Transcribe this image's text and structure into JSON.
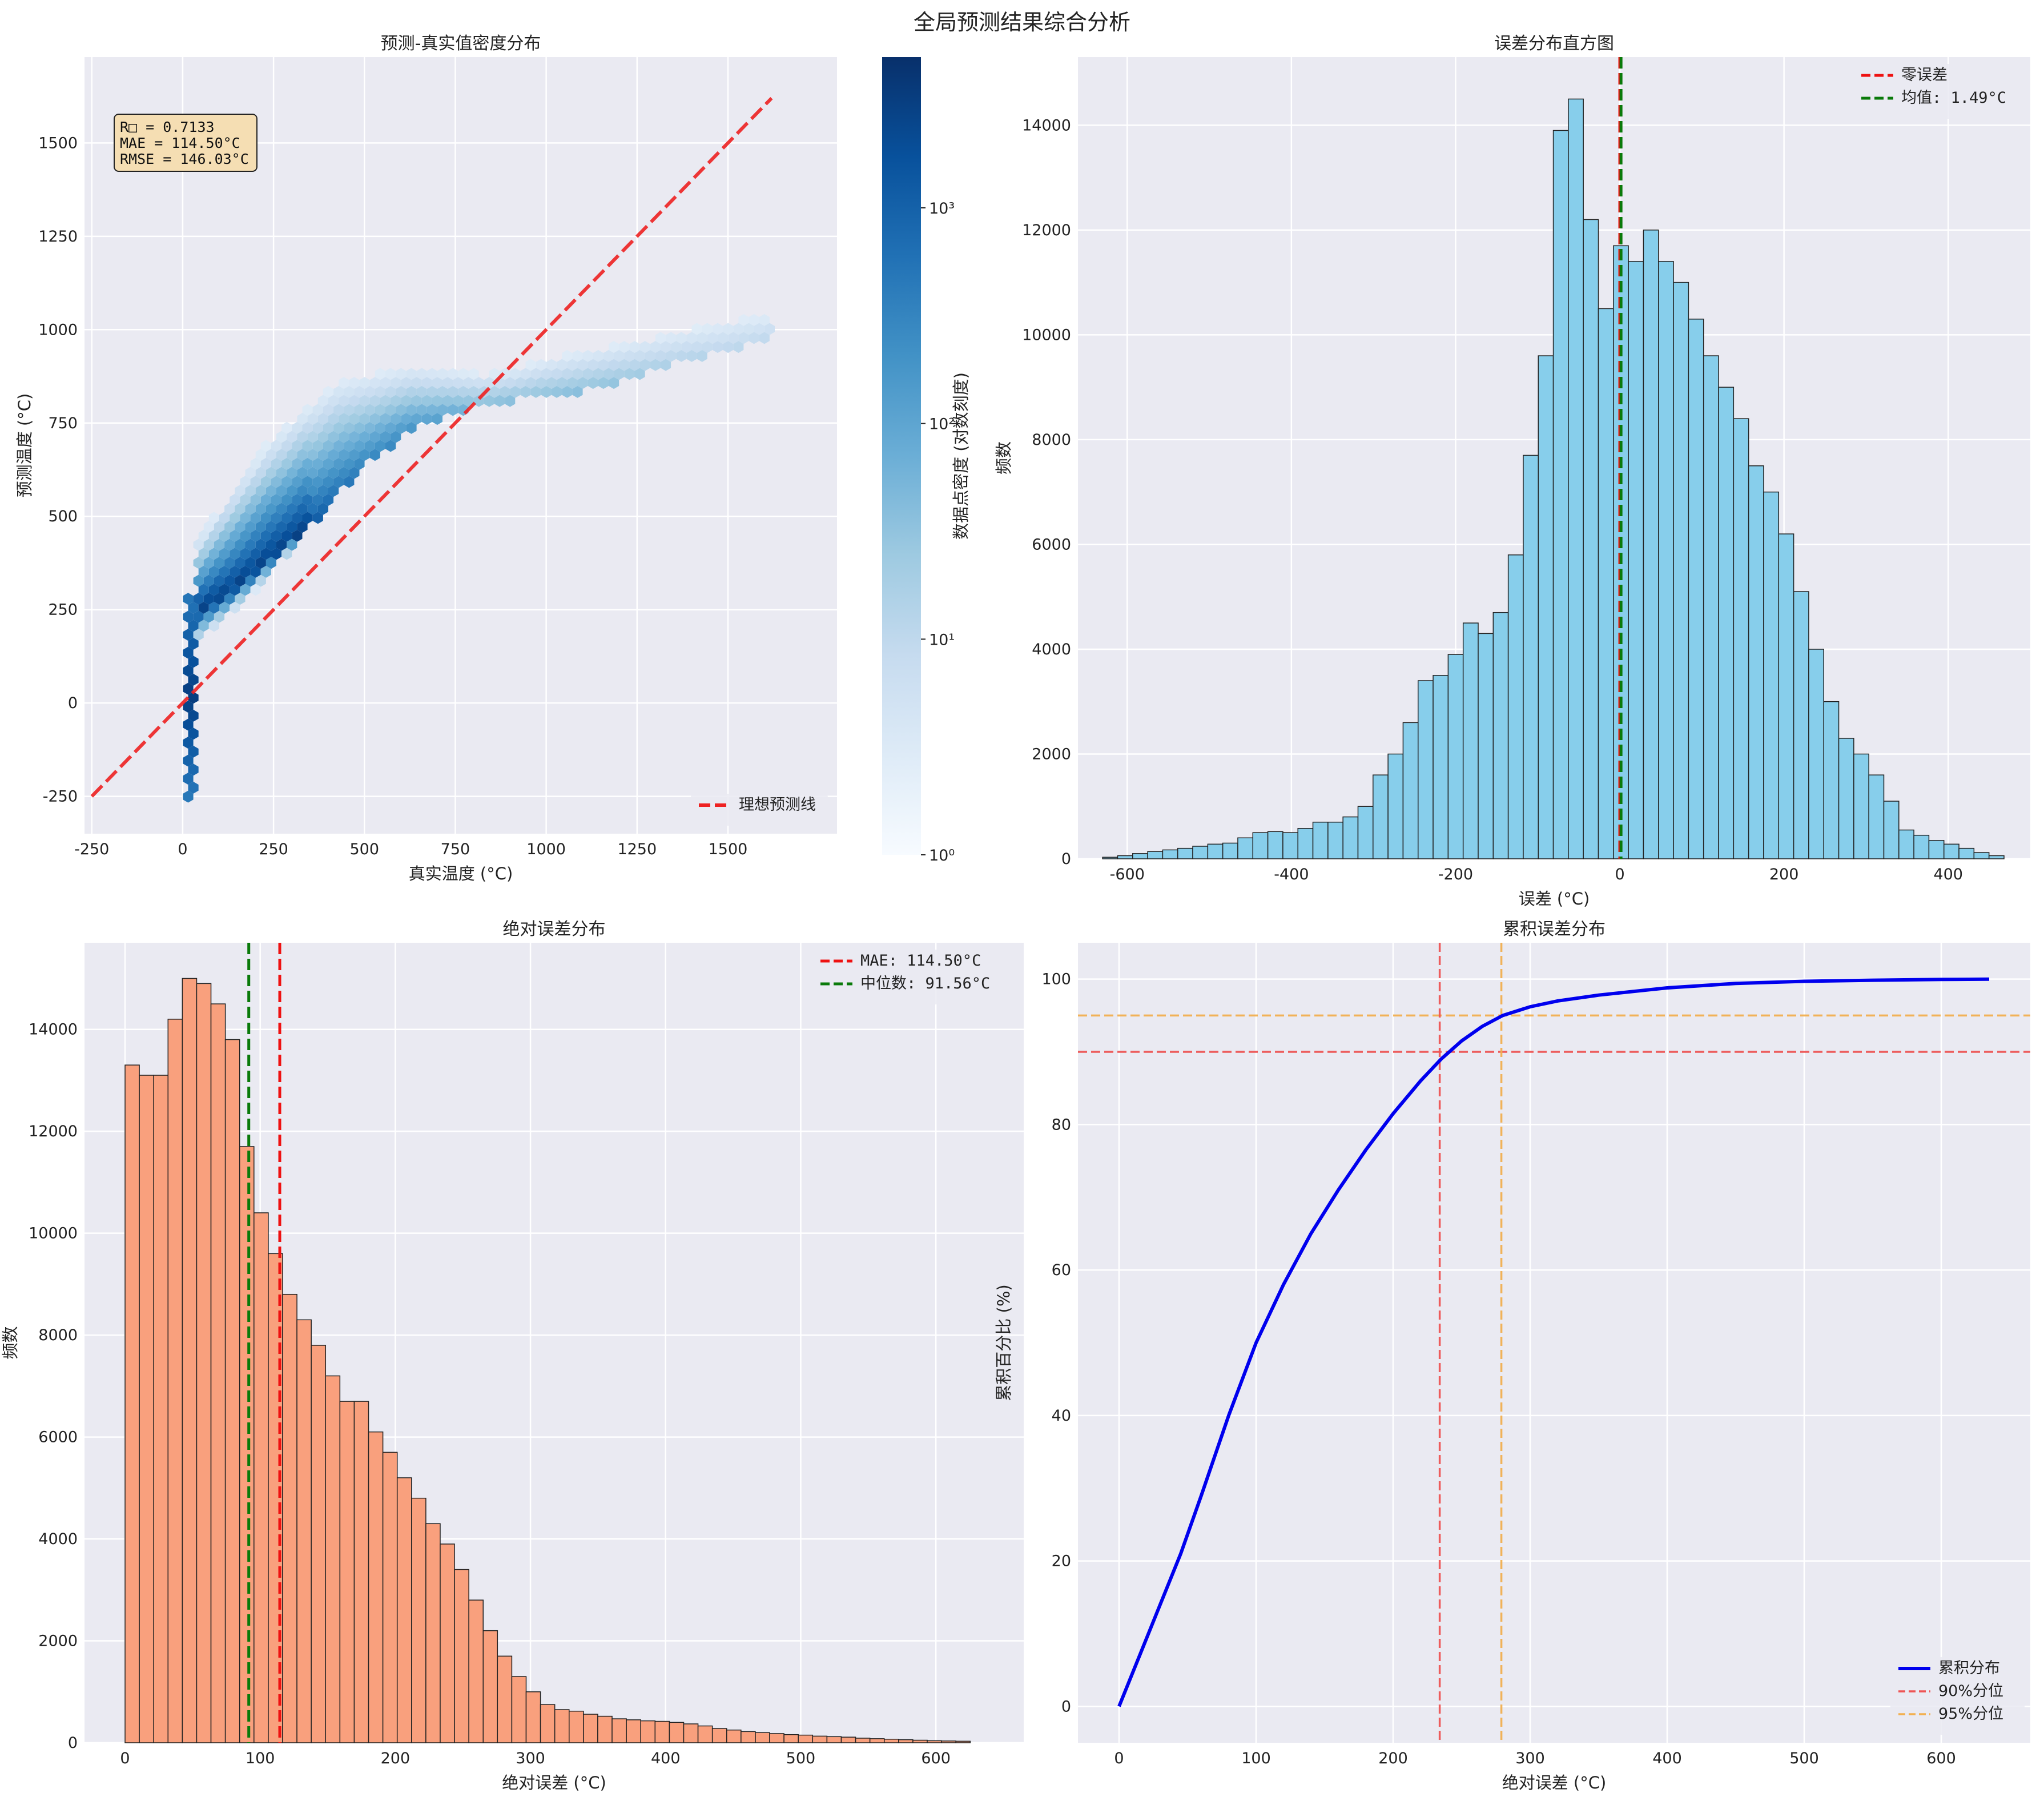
{
  "figure": {
    "title": "全局预测结果综合分析"
  },
  "chart_data": [
    {
      "type": "heatmap",
      "title": "预测-真实值密度分布",
      "xlabel": "真实温度 (°C)",
      "ylabel": "预测温度 (°C)",
      "xlim": [
        -270,
        1800
      ],
      "ylim": [
        -350,
        1730
      ],
      "xticks": [
        -250,
        0,
        250,
        500,
        750,
        1000,
        1250,
        1500
      ],
      "yticks": [
        -250,
        0,
        250,
        500,
        750,
        1000,
        1250,
        1500
      ],
      "colorbar": {
        "label": "数据点密度 (对数刻度)",
        "scale": "log",
        "ticks": [
          "10⁰",
          "10¹",
          "10²",
          "10³"
        ],
        "range": [
          1,
          5000
        ]
      },
      "ideal_line": {
        "name": "理想预测线",
        "from": [
          -250,
          -250
        ],
        "to": [
          1620,
          1620
        ],
        "color": "#ee2222"
      },
      "stats_box": [
        "R□ = 0.7133",
        "MAE = 114.50°C",
        "RMSE = 146.03°C"
      ],
      "legend": [
        "理想预测线"
      ],
      "legend_position": "lower right",
      "grid": true
    },
    {
      "type": "bar",
      "title": "误差分布直方图",
      "xlabel": "误差 (°C)",
      "ylabel": "频数",
      "xlim": [
        -660,
        500
      ],
      "ylim": [
        0,
        15300
      ],
      "xticks": [
        -600,
        -400,
        -200,
        0,
        200,
        400
      ],
      "yticks": [
        0,
        2000,
        4000,
        6000,
        8000,
        10000,
        12000,
        14000
      ],
      "bin_start": -630,
      "bin_width": 18.3,
      "values": [
        30,
        60,
        100,
        140,
        170,
        200,
        240,
        280,
        300,
        400,
        500,
        520,
        500,
        580,
        700,
        700,
        800,
        1000,
        1600,
        2000,
        2600,
        3400,
        3500,
        3900,
        4500,
        4300,
        4700,
        5800,
        7700,
        9600,
        13900,
        14500,
        12200,
        10500,
        11700,
        11400,
        12000,
        11400,
        11000,
        10300,
        9600,
        9000,
        8400,
        7500,
        7000,
        6200,
        5100,
        4000,
        3000,
        2300,
        2000,
        1600,
        1100,
        550,
        450,
        350,
        280,
        200,
        120,
        60
      ],
      "vlines": [
        {
          "name": "零误差",
          "x": 0,
          "color": "#ee1111"
        },
        {
          "name": "均值: 1.49°C",
          "x": 1.49,
          "color": "#0a7a0a"
        }
      ],
      "legend": [
        "零误差",
        "均值: 1.49°C"
      ],
      "legend_position": "upper right",
      "bar_color": "#87ceeb",
      "grid": true
    },
    {
      "type": "bar",
      "title": "绝对误差分布",
      "xlabel": "绝对误差 (°C)",
      "ylabel": "频数",
      "xlim": [
        -30,
        665
      ],
      "ylim": [
        0,
        15700
      ],
      "xticks": [
        0,
        100,
        200,
        300,
        400,
        500,
        600
      ],
      "yticks": [
        0,
        2000,
        4000,
        6000,
        8000,
        10000,
        12000,
        14000
      ],
      "bin_start": 0,
      "bin_width": 10.6,
      "values": [
        13300,
        13100,
        13100,
        14200,
        15000,
        14900,
        14500,
        13800,
        11700,
        10400,
        9600,
        8800,
        8300,
        7800,
        7200,
        6700,
        6700,
        6100,
        5700,
        5200,
        4800,
        4300,
        3900,
        3400,
        2800,
        2200,
        1700,
        1300,
        1000,
        750,
        650,
        620,
        560,
        520,
        470,
        450,
        430,
        420,
        400,
        370,
        330,
        280,
        250,
        220,
        200,
        180,
        160,
        150,
        130,
        120,
        110,
        90,
        80,
        70,
        60,
        50,
        40,
        35,
        30
      ],
      "vlines": [
        {
          "name": "MAE: 114.50°C",
          "x": 114.5,
          "color": "#ee1111"
        },
        {
          "name": "中位数: 91.56°C",
          "x": 91.56,
          "color": "#0a7a0a"
        }
      ],
      "legend": [
        "MAE: 114.50°C",
        "中位数: 91.56°C"
      ],
      "legend_position": "upper right",
      "bar_color": "#f9a07d",
      "grid": true
    },
    {
      "type": "line",
      "title": "累积误差分布",
      "xlabel": "绝对误差 (°C)",
      "ylabel": "累积百分比 (%)",
      "xlim": [
        -30,
        665
      ],
      "ylim": [
        -5,
        105
      ],
      "xticks": [
        0,
        100,
        200,
        300,
        400,
        500,
        600
      ],
      "yticks": [
        0,
        20,
        40,
        60,
        80,
        100
      ],
      "series": [
        {
          "name": "累积分布",
          "color": "#0000ee",
          "x": [
            0,
            15,
            30,
            45,
            60,
            80,
            100,
            120,
            140,
            160,
            180,
            200,
            220,
            235,
            250,
            265,
            280,
            300,
            320,
            350,
            400,
            450,
            500,
            550,
            600,
            635
          ],
          "y": [
            0,
            7,
            14,
            21,
            29,
            40,
            50,
            58,
            65,
            71,
            76.5,
            81.5,
            86,
            89,
            91.5,
            93.5,
            95,
            96.2,
            97,
            97.8,
            98.8,
            99.4,
            99.7,
            99.85,
            99.95,
            100
          ]
        }
      ],
      "hlines": [
        {
          "name": "90%分位",
          "y": 90,
          "color": "#ee5555"
        },
        {
          "name": "95%分位",
          "y": 95,
          "color": "#f2b050"
        }
      ],
      "vlines": [
        {
          "x": 234,
          "color": "#ee5555"
        },
        {
          "x": 279,
          "color": "#f2b050"
        }
      ],
      "legend": [
        "累积分布",
        "90%分位",
        "95%分位"
      ],
      "legend_position": "lower right",
      "grid": true
    }
  ]
}
